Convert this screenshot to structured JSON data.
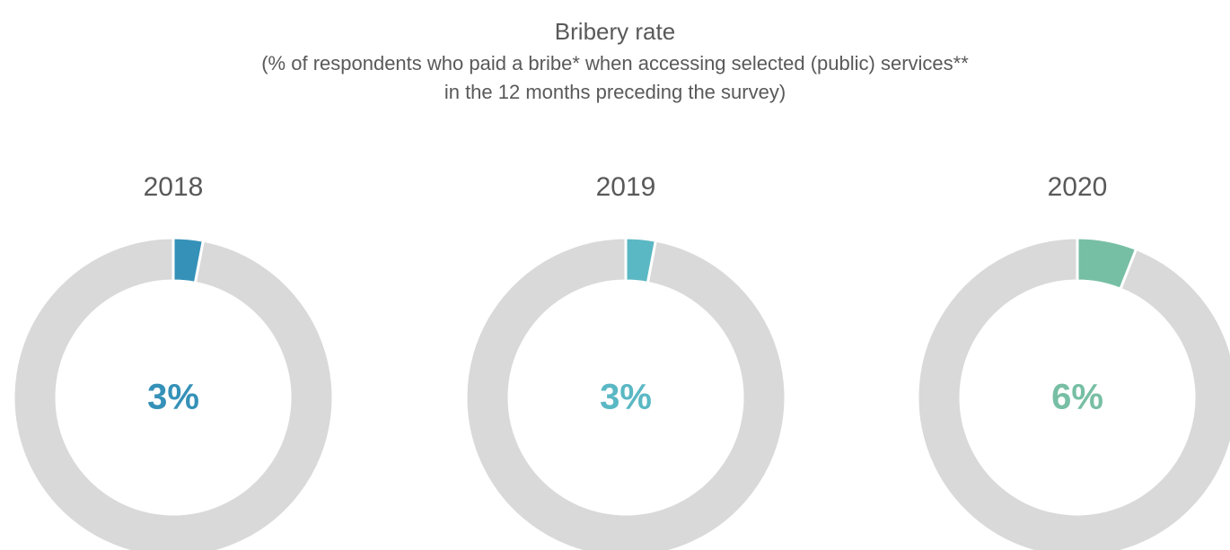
{
  "header": {
    "title": "Bribery rate",
    "subtitle": [
      "(% of respondents who paid a bribe* when accessing selected (public) services**",
      "in the 12 months preceding the survey)"
    ]
  },
  "chart_data": [
    {
      "type": "donut",
      "title": "2018",
      "values": [
        3
      ],
      "value_labels": [
        "3%"
      ],
      "color": "#3591b8"
    },
    {
      "type": "donut",
      "title": "2019",
      "values": [
        3
      ],
      "value_labels": [
        "3%"
      ],
      "color": "#5ab8c4"
    },
    {
      "type": "donut",
      "title": "2020",
      "values": [
        6
      ],
      "value_labels": [
        "6%"
      ],
      "color": "#77bfa4"
    }
  ]
}
